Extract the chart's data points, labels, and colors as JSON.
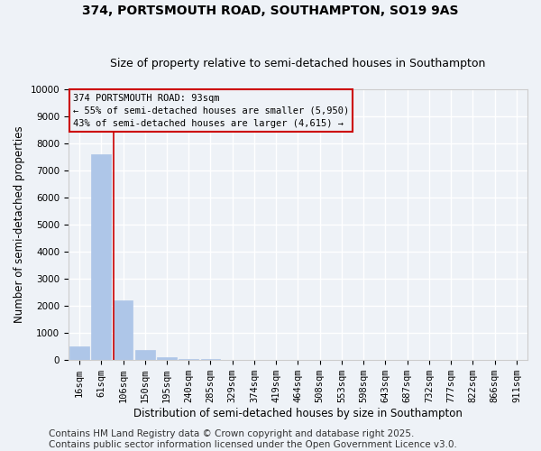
{
  "title": "374, PORTSMOUTH ROAD, SOUTHAMPTON, SO19 9AS",
  "subtitle": "Size of property relative to semi-detached houses in Southampton",
  "xlabel": "Distribution of semi-detached houses by size in Southampton",
  "ylabel": "Number of semi-detached properties",
  "footer_line1": "Contains HM Land Registry data © Crown copyright and database right 2025.",
  "footer_line2": "Contains public sector information licensed under the Open Government Licence v3.0.",
  "bins": [
    "16sqm",
    "61sqm",
    "106sqm",
    "150sqm",
    "195sqm",
    "240sqm",
    "285sqm",
    "329sqm",
    "374sqm",
    "419sqm",
    "464sqm",
    "508sqm",
    "553sqm",
    "598sqm",
    "643sqm",
    "687sqm",
    "732sqm",
    "777sqm",
    "822sqm",
    "866sqm",
    "911sqm"
  ],
  "values": [
    500,
    7600,
    2200,
    370,
    100,
    50,
    50,
    0,
    0,
    0,
    0,
    0,
    0,
    0,
    0,
    0,
    0,
    0,
    0,
    0,
    0
  ],
  "bar_color": "#aec6e8",
  "bar_edgecolor": "#aec6e8",
  "property_line_x": 1.58,
  "property_line_color": "#cc0000",
  "annotation_title": "374 PORTSMOUTH ROAD: 93sqm",
  "annotation_line1": "← 55% of semi-detached houses are smaller (5,950)",
  "annotation_line2": "43% of semi-detached houses are larger (4,615) →",
  "annotation_box_color": "#cc0000",
  "ylim": [
    0,
    10000
  ],
  "yticks": [
    0,
    1000,
    2000,
    3000,
    4000,
    5000,
    6000,
    7000,
    8000,
    9000,
    10000
  ],
  "background_color": "#eef2f7",
  "grid_color": "#ffffff",
  "title_fontsize": 10,
  "subtitle_fontsize": 9,
  "axis_label_fontsize": 8.5,
  "tick_fontsize": 7.5,
  "footer_fontsize": 7.5
}
